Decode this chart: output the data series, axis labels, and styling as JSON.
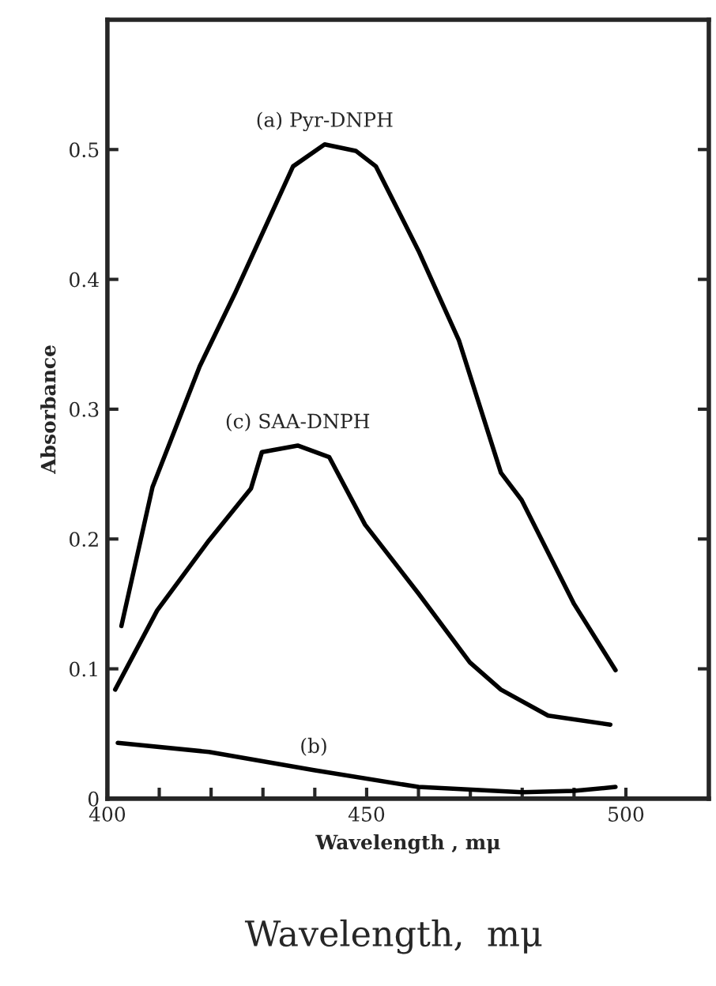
{
  "chart_data": {
    "type": "line",
    "xlabel": "Wavelength , mμ",
    "ylabel": "Absorbance",
    "xlim": [
      400,
      516
    ],
    "ylim": [
      0,
      0.6
    ],
    "xticks": [
      400,
      {
        "value": 410,
        "label": null
      },
      {
        "value": 420,
        "label": null
      },
      {
        "value": 430,
        "label": null
      },
      {
        "value": 440,
        "label": null
      },
      450,
      {
        "value": 460,
        "label": null
      },
      {
        "value": 470,
        "label": null
      },
      {
        "value": 480,
        "label": null
      },
      {
        "value": 490,
        "label": null
      },
      500
    ],
    "yticks": [
      0,
      0.1,
      0.2,
      0.3,
      0.4,
      0.5
    ],
    "grid": false,
    "legend": false,
    "marker": "none",
    "line_style": "solid",
    "series": [
      {
        "name": "(a) Pyr-DNPH",
        "color": "#000000",
        "x": [
          402.7,
          408.7,
          417.8,
          424.7,
          435.8,
          441.9,
          447.9,
          451.8,
          460,
          467.8,
          475.9,
          479.9,
          490,
          498
        ],
        "values": [
          0.133,
          0.24,
          0.333,
          0.39,
          0.487,
          0.504,
          0.499,
          0.487,
          0.422,
          0.353,
          0.251,
          0.23,
          0.15,
          0.099
        ]
      },
      {
        "name": "(c) SAA-DNPH",
        "color": "#000000",
        "x": [
          401.5,
          409.6,
          419.6,
          427.7,
          429.8,
          436.7,
          442.8,
          449.7,
          460,
          469.9,
          475.9,
          485,
          497
        ],
        "values": [
          0.084,
          0.145,
          0.199,
          0.239,
          0.267,
          0.272,
          0.263,
          0.211,
          0.158,
          0.105,
          0.084,
          0.064,
          0.057
        ]
      },
      {
        "name": "(b)",
        "color": "#000000",
        "x": [
          402,
          419.6,
          439.8,
          460,
          480,
          490,
          498
        ],
        "values": [
          0.043,
          0.036,
          0.022,
          0.009,
          0.005,
          0.006,
          0.009
        ]
      }
    ],
    "annotations": [
      "Wavelength,  mμ"
    ]
  }
}
